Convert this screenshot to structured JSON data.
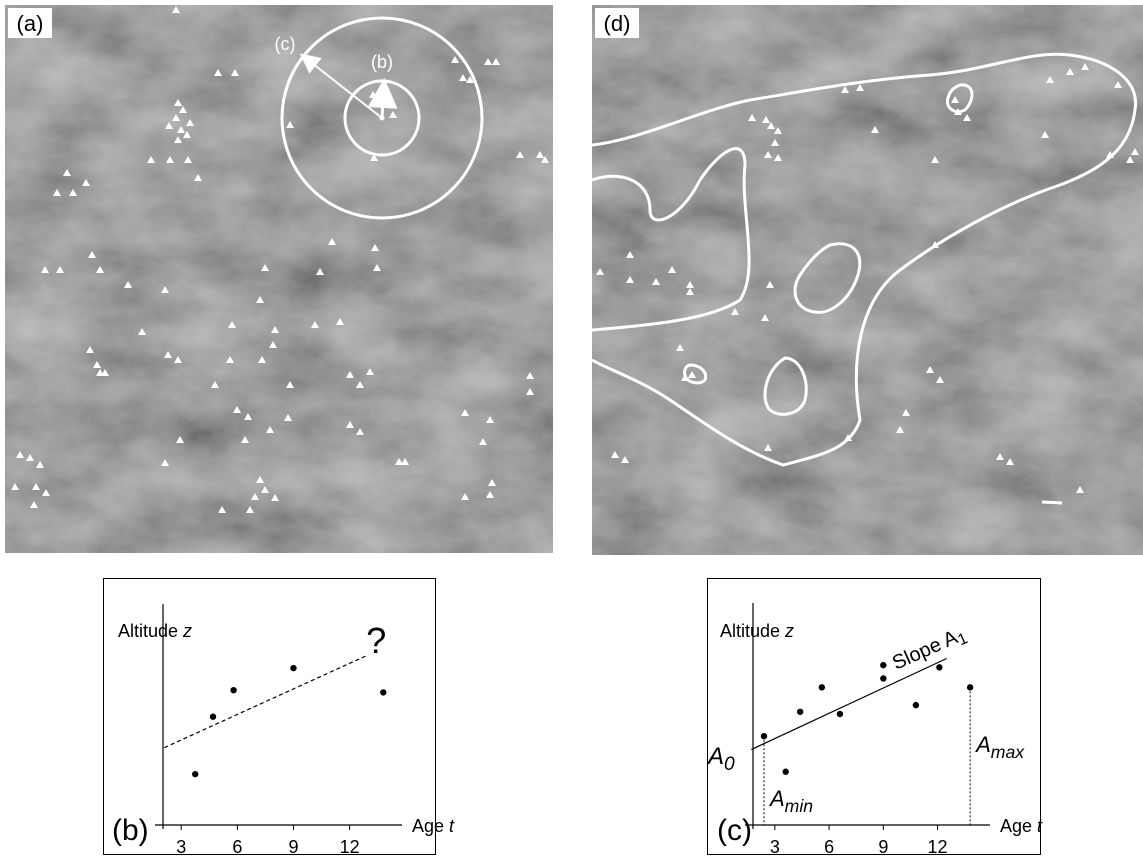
{
  "maps": [
    {
      "label": "(a)",
      "circle_labels": [
        "(c)",
        "(b)"
      ]
    },
    {
      "label": "(d)"
    }
  ],
  "chart_data": [
    {
      "type": "scatter",
      "panel_label": "(b)",
      "y_label": "Altitude",
      "y_label_var": "z",
      "x_label": "Age",
      "x_label_var": "t",
      "xlim": [
        1.6,
        14.8
      ],
      "ylim": [
        0,
        10
      ],
      "xticks": [
        3,
        6,
        9,
        12
      ],
      "x": [
        3.75,
        4.7,
        5.8,
        9,
        13.8
      ],
      "y": [
        2.3,
        4.9,
        6.1,
        7.1,
        6.0
      ],
      "trend": {
        "style": "dashed",
        "x": [
          2.1,
          13
        ],
        "y": [
          3.5,
          7.7
        ]
      },
      "annotation": "?"
    },
    {
      "type": "scatter",
      "panel_label": "(c)",
      "y_label": "Altitude",
      "y_label_var": "z",
      "x_label": "Age",
      "x_label_var": "t",
      "xlim": [
        1.35,
        14.9
      ],
      "ylim": [
        0,
        10
      ],
      "xticks": [
        3,
        6,
        9,
        12
      ],
      "x": [
        2.4,
        3.6,
        4.4,
        5.6,
        6.6,
        9.0,
        9.0,
        10.8,
        12.1,
        13.8
      ],
      "y": [
        4.0,
        2.4,
        5.1,
        6.2,
        5.0,
        7.2,
        6.6,
        5.4,
        7.1,
        6.2
      ],
      "trend": {
        "style": "solid",
        "x": [
          1.7,
          12.5
        ],
        "y": [
          3.4,
          7.5
        ]
      },
      "annotations": {
        "intercept": {
          "base": "A",
          "sub": "0"
        },
        "min": {
          "base": "A",
          "sub": "min"
        },
        "max": {
          "base": "A",
          "sub": "max"
        },
        "slope": {
          "base": "Slope A",
          "sub": "1"
        }
      }
    }
  ]
}
